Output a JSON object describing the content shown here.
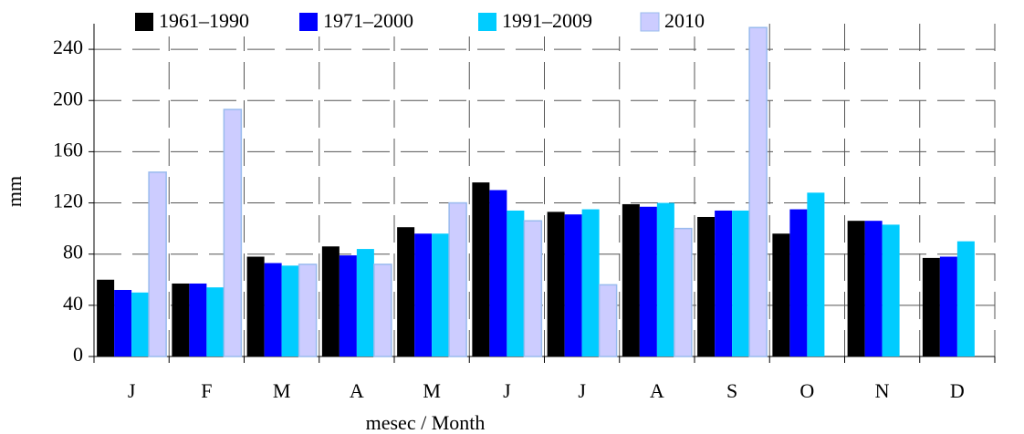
{
  "chart_data": {
    "type": "bar",
    "x_label": "mesec / Month",
    "y_label": "mm",
    "categories": [
      "J",
      "F",
      "M",
      "A",
      "M",
      "J",
      "J",
      "A",
      "S",
      "O",
      "N",
      "D"
    ],
    "series": [
      {
        "name": "1961–1990",
        "color": "#000000",
        "values": [
          60,
          57,
          78,
          86,
          101,
          136,
          113,
          119,
          109,
          96,
          106,
          77
        ]
      },
      {
        "name": "1971–2000",
        "color": "#0000ff",
        "values": [
          52,
          57,
          73,
          79,
          96,
          130,
          111,
          117,
          114,
          115,
          106,
          78
        ]
      },
      {
        "name": "1991–2009",
        "color": "#00ccff",
        "values": [
          50,
          54,
          71,
          84,
          96,
          114,
          115,
          120,
          114,
          128,
          103,
          90
        ]
      },
      {
        "name": "2010",
        "color": "#ccccff",
        "values": [
          144,
          193,
          72,
          72,
          120,
          106,
          56,
          100,
          257,
          null,
          null,
          null
        ]
      }
    ],
    "ylim": [
      0,
      260
    ],
    "yticks": [
      0,
      40,
      80,
      120,
      160,
      200,
      240
    ],
    "grid": true,
    "legend": "top"
  }
}
